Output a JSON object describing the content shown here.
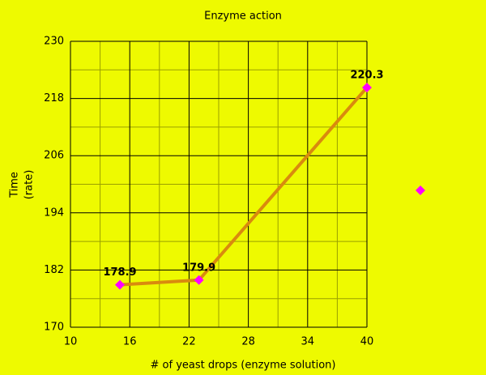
{
  "chart_data": {
    "type": "line",
    "title": "Enzyme action",
    "x_label": "# of yeast drops (enzyme solution)",
    "y_label": [
      "Time",
      "(rate)"
    ],
    "x": [
      15,
      23,
      40
    ],
    "series": [
      {
        "name": null,
        "color": "#d98a0e",
        "marker_color": "#ff00ff",
        "values": [
          178.9,
          179.9,
          220.3
        ]
      }
    ],
    "xlim": [
      10,
      40
    ],
    "xticks": [
      10,
      16,
      22,
      28,
      34,
      40
    ],
    "ylim": [
      170,
      230
    ],
    "yticks": [
      170,
      182,
      194,
      206,
      218,
      230
    ],
    "grid": true,
    "minor_grid": true,
    "data_labels": true,
    "legend": "right"
  }
}
